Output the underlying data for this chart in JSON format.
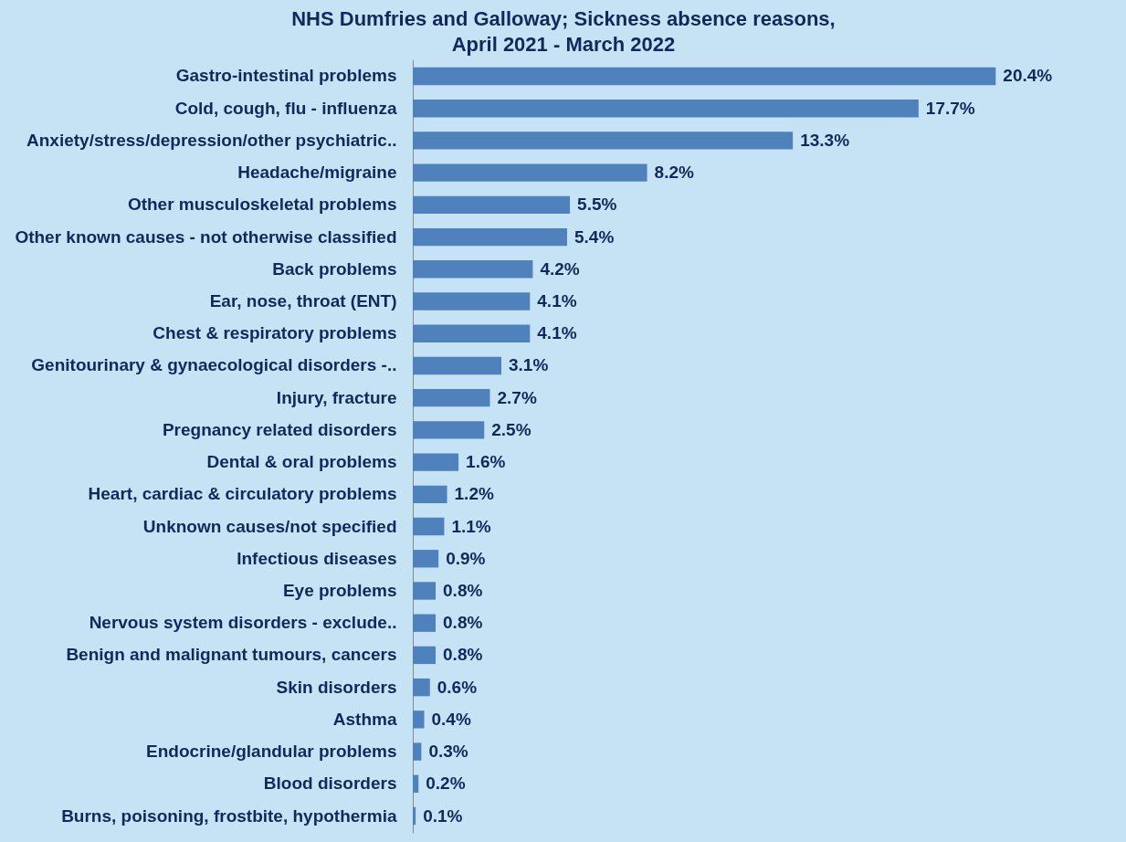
{
  "chart_data": {
    "type": "bar",
    "orientation": "horizontal",
    "title": "NHS Dumfries and Galloway; Sickness absence reasons,\nApril 2021 - March 2022",
    "categories": [
      "Gastro-intestinal problems",
      "Cold, cough, flu - influenza",
      "Anxiety/stress/depression/other psychiatric..",
      "Headache/migraine",
      "Other musculoskeletal problems",
      "Other known causes - not otherwise classified",
      "Back problems",
      "Ear, nose, throat (ENT)",
      "Chest & respiratory problems",
      "Genitourinary & gynaecological disorders -..",
      "Injury, fracture",
      "Pregnancy related disorders",
      "Dental & oral problems",
      "Heart, cardiac & circulatory problems",
      "Unknown causes/not specified",
      "Infectious diseases",
      "Eye problems",
      "Nervous system disorders - exclude..",
      "Benign and malignant tumours, cancers",
      "Skin disorders",
      "Asthma",
      "Endocrine/glandular problems",
      "Blood disorders",
      "Burns, poisoning, frostbite, hypothermia"
    ],
    "values": [
      20.4,
      17.7,
      13.3,
      8.2,
      5.5,
      5.4,
      4.2,
      4.1,
      4.1,
      3.1,
      2.7,
      2.5,
      1.6,
      1.2,
      1.1,
      0.9,
      0.8,
      0.8,
      0.8,
      0.6,
      0.4,
      0.3,
      0.2,
      0.1
    ],
    "value_labels": [
      "20.4%",
      "17.7%",
      "13.3%",
      "8.2%",
      "5.5%",
      "5.4%",
      "4.2%",
      "4.1%",
      "4.1%",
      "3.1%",
      "2.7%",
      "2.5%",
      "1.6%",
      "1.2%",
      "1.1%",
      "0.9%",
      "0.8%",
      "0.8%",
      "0.8%",
      "0.6%",
      "0.4%",
      "0.3%",
      "0.2%",
      "0.1%"
    ],
    "color": "#4f81bd",
    "grid": false
  }
}
